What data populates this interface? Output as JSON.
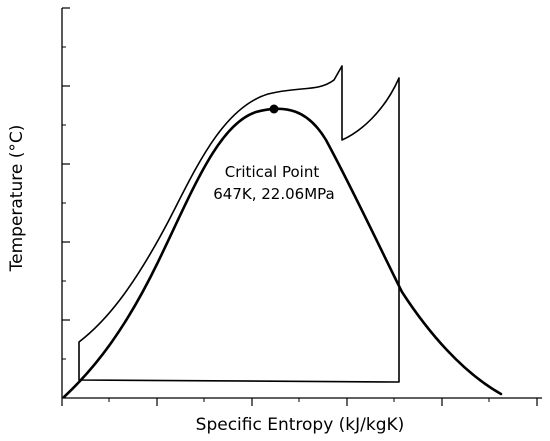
{
  "diagram": {
    "xlabel": "Specific Entropy (kJ/kgK)",
    "ylabel": "Temperature (°C)",
    "critical_point": {
      "label_line1": "Critical Point",
      "label_line2": "647K, 22.06MPa"
    },
    "stroke_color": "#000000",
    "elements": [
      "saturation-dome",
      "thermodynamic-cycle",
      "critical-point-marker"
    ]
  }
}
